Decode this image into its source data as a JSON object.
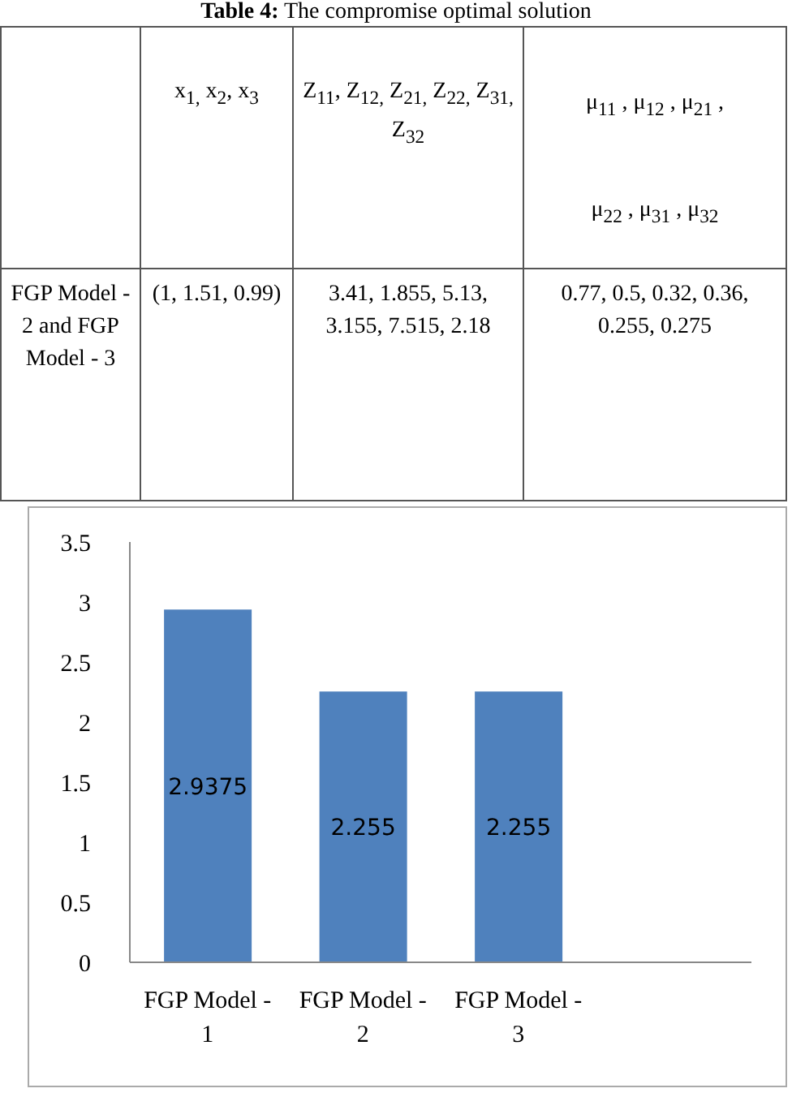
{
  "chart_data": [
    {
      "type": "other",
      "title": "Table 4: The compromise optimal solution",
      "annotations": [
        "x$_{1,}$ x$_{2}$, x$_{3}$",
        "Z$_{11}$, Z$_{12,}$ Z$_{21,}$ Z$_{22,}$ Z$_{31,}$ Z$_{32}$",
        "μ$_{11}$ , μ$_{12}$ , μ$_{21}$ , μ$_{22}$ , μ$_{31}$ , μ$_{32}$",
        "FGP Model - 2  and FGP Model - 3",
        "(1, 1.51, 0.99)",
        "3.41, 1.855, 5.13, 3.155, 7.515, 2.18",
        "0.77, 0.5, 0.32, 0.36, 0.255, 0.275"
      ]
    },
    {
      "type": "bar",
      "categories": [
        "FGP Model - 1",
        "FGP Model - 2",
        "FGP Model - 3",
        null
      ],
      "values": [
        2.9375,
        2.255,
        2.255,
        null
      ],
      "color": "#4f81bd",
      "ylim": [
        0,
        3.5
      ],
      "yticks": [
        0,
        0.5,
        1,
        1.5,
        2,
        2.5,
        3,
        3.5
      ],
      "grid": false,
      "data_labels": true
    }
  ]
}
